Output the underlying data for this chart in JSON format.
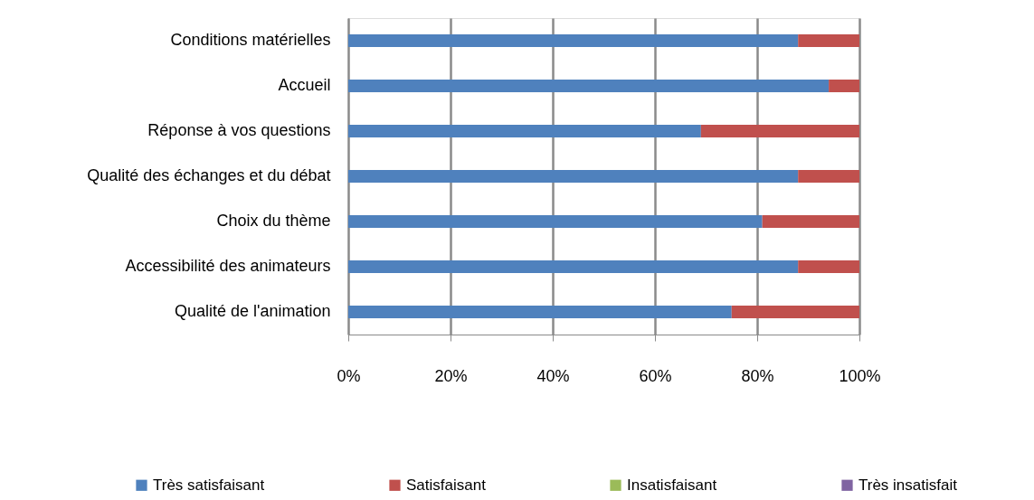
{
  "chart_data": {
    "type": "bar",
    "orientation": "horizontal",
    "stacked": true,
    "categories": [
      "Conditions matérielles",
      "Accueil",
      "Réponse à vos questions",
      "Qualité des échanges et du débat",
      "Choix du thème",
      "Accessibilité des animateurs",
      "Qualité de l'animation"
    ],
    "series": [
      {
        "name": "Très satisfaisant",
        "color": "#4f81bd",
        "values": [
          88,
          94,
          69,
          88,
          81,
          88,
          75
        ]
      },
      {
        "name": "Satisfaisant",
        "color": "#c0504d",
        "values": [
          12,
          6,
          31,
          12,
          19,
          12,
          25
        ]
      },
      {
        "name": "Insatisfaisant",
        "color": "#9bbb59",
        "values": [
          0,
          0,
          0,
          0,
          0,
          0,
          0
        ]
      },
      {
        "name": "Très insatisfait",
        "color": "#8064a2",
        "values": [
          0,
          0,
          0,
          0,
          0,
          0,
          0
        ]
      }
    ],
    "xlim": [
      0,
      100
    ],
    "xticks": [
      {
        "value": 0,
        "label": "0%"
      },
      {
        "value": 20,
        "label": "20%"
      },
      {
        "value": 40,
        "label": "40%"
      },
      {
        "value": 60,
        "label": "60%"
      },
      {
        "value": 80,
        "label": "80%"
      },
      {
        "value": 100,
        "label": "100%"
      }
    ],
    "grid": "x",
    "legend": "bottom"
  }
}
